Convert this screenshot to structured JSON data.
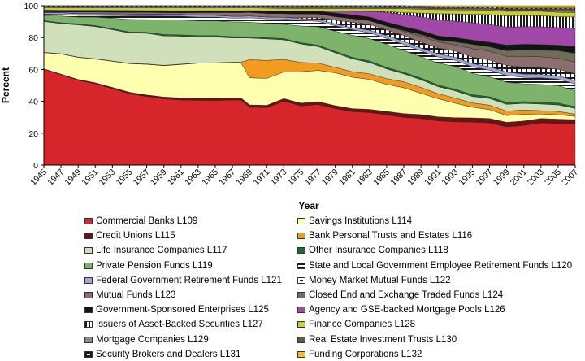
{
  "chart_data": {
    "type": "area",
    "stacked": true,
    "ylabel": "Percent",
    "xlabel": "Year",
    "ylim": [
      0,
      100
    ],
    "yticks": [
      0,
      20,
      40,
      60,
      80,
      100
    ],
    "x": [
      1945,
      1947,
      1949,
      1951,
      1953,
      1955,
      1957,
      1959,
      1961,
      1963,
      1965,
      1967,
      1968,
      1969,
      1971,
      1973,
      1975,
      1977,
      1979,
      1981,
      1983,
      1985,
      1987,
      1989,
      1991,
      1993,
      1995,
      1997,
      1999,
      2001,
      2003,
      2005,
      2007
    ],
    "xticks": [
      "1945",
      "1947",
      "1949",
      "1951",
      "1953",
      "1955",
      "1957",
      "1959",
      "1961",
      "1963",
      "1965",
      "1967",
      "1969",
      "1971",
      "1973",
      "1975",
      "1977",
      "1979",
      "1981",
      "1983",
      "1985",
      "1987",
      "1989",
      "1991",
      "1993",
      "1995",
      "1997",
      "1999",
      "2001",
      "2003",
      "2005",
      "2007"
    ],
    "series": [
      {
        "name": "Commercial Banks L109",
        "color": "#d7262b",
        "values": [
          59,
          54,
          50,
          48,
          44,
          40,
          38,
          36,
          35,
          35,
          35,
          35,
          35,
          32,
          32,
          36,
          32,
          33,
          31,
          29,
          28,
          26,
          24,
          24,
          22,
          21,
          20,
          19,
          17,
          18,
          19,
          19,
          18
        ]
      },
      {
        "name": "Credit Unions L115",
        "color": "#6b1416",
        "values": [
          0.3,
          0.4,
          0.5,
          0.6,
          0.7,
          0.8,
          0.9,
          1.0,
          1.1,
          1.1,
          1.2,
          1.2,
          1.2,
          1.3,
          1.3,
          1.4,
          1.5,
          1.6,
          1.6,
          1.6,
          1.7,
          1.8,
          1.9,
          2.0,
          2.0,
          2.0,
          2.0,
          2.0,
          2.0,
          2.0,
          2.0,
          2.0,
          2.0
        ]
      },
      {
        "name": "Savings Institutions L114",
        "color": "#ffffb0",
        "values": [
          10,
          12,
          13,
          14,
          15,
          16,
          17,
          17,
          18,
          19,
          19,
          19,
          19,
          15,
          15,
          15,
          17,
          17,
          18,
          17,
          16,
          14,
          13,
          11,
          9,
          7,
          5,
          4,
          3,
          3,
          2,
          2,
          1.5
        ]
      },
      {
        "name": "Bank Personal Trusts and Estates L116",
        "color": "#f39a20",
        "values": [
          0.2,
          0.2,
          0.2,
          0.2,
          0.2,
          0.2,
          0.2,
          0.2,
          0.2,
          0.2,
          0.2,
          0.3,
          0.3,
          10,
          10,
          7,
          5,
          4,
          3,
          3,
          3,
          3,
          3,
          3,
          2.5,
          2.5,
          2,
          2,
          2,
          2,
          1.5,
          1.5,
          1
        ]
      },
      {
        "name": "Life Insurance Companies L117",
        "color": "#cfe0bb",
        "values": [
          19,
          18,
          19,
          19,
          18,
          17,
          17,
          16,
          15,
          14,
          14,
          13,
          13,
          12,
          12,
          11,
          10,
          9,
          8,
          7,
          6,
          5,
          4,
          4,
          3.5,
          3.5,
          3,
          3,
          3,
          3,
          3,
          3,
          2.5
        ]
      },
      {
        "name": "Other Insurance Companies L118",
        "color": "#1d6b2e",
        "values": [
          0.5,
          0.5,
          0.6,
          0.6,
          0.6,
          0.6,
          0.6,
          0.7,
          0.7,
          0.7,
          0.7,
          0.7,
          0.7,
          0.7,
          0.7,
          0.7,
          0.7,
          0.8,
          0.8,
          0.8,
          0.8,
          0.8,
          0.8,
          0.8,
          0.8,
          0.8,
          0.8,
          0.8,
          0.8,
          0.8,
          0.8,
          0.8,
          0.8
        ]
      },
      {
        "name": "Private Pension Funds L119",
        "color": "#7db36a",
        "values": [
          3,
          4,
          4,
          5,
          6,
          7,
          7,
          8,
          8,
          8,
          8,
          8,
          8,
          8,
          8,
          8,
          9,
          10,
          11,
          12,
          12,
          12,
          11,
          11,
          11,
          11,
          10,
          9,
          9,
          8,
          8,
          8,
          7
        ]
      },
      {
        "name": "State and Local Government Employee Retirement Funds L120",
        "color": "#1a1a1a",
        "pattern": "stripe-h",
        "values": [
          1,
          1,
          1,
          1,
          1.5,
          2,
          2,
          2,
          2,
          2,
          2,
          2,
          2,
          2.5,
          2.5,
          3,
          3,
          3,
          3,
          3,
          3,
          3,
          3,
          3,
          3,
          3,
          3,
          3,
          3,
          3,
          3,
          3,
          3
        ]
      },
      {
        "name": "Federal Government Retirement Funds L121",
        "color": "#9fa3d8",
        "values": [
          1,
          1,
          1,
          1,
          1,
          1,
          1,
          1,
          1,
          1,
          1,
          1,
          1,
          1,
          1,
          1,
          1,
          1,
          1,
          1,
          1.5,
          1.5,
          1.5,
          1.5,
          1.5,
          1.5,
          1.5,
          1.5,
          1.5,
          1.5,
          1.5,
          1.5,
          1.5
        ]
      },
      {
        "name": "Money Market Mutual Funds L122",
        "color": "#ffffff",
        "pattern": "box-white",
        "values": [
          0,
          0,
          0,
          0,
          0,
          0,
          0,
          0,
          0,
          0,
          0,
          0,
          0,
          0,
          0,
          0,
          0.5,
          1,
          2,
          3,
          3,
          3,
          3,
          3,
          3,
          3,
          3,
          3,
          3,
          3,
          3,
          3,
          3
        ]
      },
      {
        "name": "Mutual Funds L123",
        "color": "#8d6e6e",
        "values": [
          0.5,
          0.5,
          1,
          1,
          1,
          1,
          1,
          1,
          1,
          1.5,
          1.5,
          2,
          2,
          2,
          2,
          2,
          2,
          2,
          2,
          2,
          2,
          2,
          2,
          3,
          3,
          3,
          4,
          4,
          4,
          5,
          5,
          5,
          5
        ]
      },
      {
        "name": "Closed End and Exchange Traded Funds L124",
        "color": "#706c5a",
        "values": [
          0,
          0,
          0,
          0,
          0,
          0,
          0,
          0,
          0,
          0,
          0,
          0,
          0,
          0,
          0,
          0,
          0,
          0,
          0,
          0,
          0,
          0,
          0.5,
          1,
          1,
          1.5,
          2,
          2,
          2.5,
          3,
          3,
          3.5,
          4
        ]
      },
      {
        "name": "Government-Sponsored Enterprises L125",
        "color": "#141414",
        "values": [
          1,
          1,
          1,
          1,
          1,
          1,
          1,
          1,
          1,
          1,
          1,
          1,
          1,
          1,
          1.5,
          1.5,
          1.5,
          1.5,
          2,
          2,
          2,
          2,
          2,
          2,
          2,
          2,
          2,
          2,
          2.5,
          2.5,
          2.5,
          2.5,
          3
        ]
      },
      {
        "name": "Agency and GSE-backed Mortgage Pools L126",
        "color": "#a047a8",
        "values": [
          0,
          0,
          0,
          0,
          0,
          0,
          0,
          0,
          0,
          0,
          0,
          0,
          0,
          0,
          0,
          0,
          0,
          0,
          1,
          2,
          3,
          5,
          6,
          7,
          8,
          8,
          8,
          8,
          8,
          8,
          8,
          8,
          8
        ]
      },
      {
        "name": "Issuers of Asset-Backed Securities L127",
        "color": "#ffffff",
        "pattern": "stripe-v",
        "values": [
          0,
          0,
          0,
          0,
          0,
          0,
          0,
          0,
          0,
          0,
          0,
          0,
          0,
          0,
          0,
          0,
          0,
          0,
          0,
          0,
          0,
          0.5,
          1,
          2,
          3,
          3.5,
          4,
          4.5,
          5,
          5,
          5,
          5,
          5
        ]
      },
      {
        "name": "Finance Companies L128",
        "color": "#c6ce3a",
        "values": [
          1.5,
          1.5,
          1.5,
          1.5,
          1.5,
          1.5,
          1.5,
          1.5,
          1.5,
          1.5,
          1.5,
          1.5,
          1.5,
          1.5,
          1.5,
          1.5,
          1.5,
          1.5,
          1.5,
          1.5,
          1.5,
          1.5,
          2,
          2,
          2,
          2,
          2,
          2,
          2,
          2,
          2,
          2,
          2
        ]
      },
      {
        "name": "Mortgage Companies L129",
        "color": "#8e8a7a",
        "values": [
          0.5,
          0.5,
          0.5,
          0.5,
          0.5,
          0.5,
          0.5,
          0.5,
          0.5,
          0.5,
          0.5,
          0.5,
          0.5,
          0.5,
          0.5,
          0.5,
          0.5,
          0.5,
          0.5,
          0.5,
          0.5,
          0.5,
          0.5,
          0.5,
          0.5,
          0.5,
          0.5,
          0.5,
          0.5,
          0.5,
          0.5,
          0.5,
          0.5
        ]
      },
      {
        "name": "Real Estate Investment Trusts L130",
        "color": "#5e5a48",
        "values": [
          0.2,
          0.2,
          0.2,
          0.2,
          0.2,
          0.2,
          0.2,
          0.2,
          0.2,
          0.2,
          0.2,
          0.2,
          0.2,
          0.2,
          0.3,
          0.5,
          0.5,
          0.5,
          0.5,
          0.5,
          0.5,
          0.5,
          0.5,
          0.5,
          0.5,
          0.5,
          0.5,
          0.5,
          0.5,
          0.5,
          0.5,
          1,
          1
        ]
      },
      {
        "name": "Security Brokers and Dealers L131",
        "color": "#ffffff",
        "pattern": "box-black",
        "values": [
          0.5,
          0.5,
          0.5,
          0.5,
          0.5,
          0.5,
          0.5,
          0.5,
          0.5,
          0.5,
          0.5,
          0.5,
          0.5,
          0.5,
          0.5,
          0.5,
          0.5,
          0.5,
          0.5,
          0.5,
          0.5,
          0.5,
          0.5,
          0.5,
          0.5,
          0.5,
          0.5,
          0.5,
          0.5,
          0.5,
          0.5,
          0.5,
          0.5
        ]
      },
      {
        "name": "Funding Corporations L132",
        "color": "#f5bd1f",
        "values": [
          0,
          0,
          0,
          0,
          0,
          0,
          0,
          0,
          0,
          0,
          0,
          0,
          0,
          0,
          0,
          0,
          0,
          0,
          0,
          0,
          0,
          0,
          0,
          0.3,
          0.5,
          0.5,
          0.5,
          0.5,
          1,
          1,
          1,
          1,
          1
        ]
      }
    ],
    "legend_placement": "below",
    "legend_columns": 2,
    "legend_order": [
      "Commercial Banks L109",
      "Savings Institutions L114",
      "Credit Unions L115",
      "Bank Personal Trusts and Estates L116",
      "Life Insurance Companies L117",
      "Other Insurance Companies L118",
      "Private Pension Funds L119",
      "State and Local Government Employee Retirement Funds L120",
      "Federal Government Retirement Funds L121",
      "Money Market Mutual Funds L122",
      "Mutual Funds L123",
      "Closed End and Exchange Traded Funds L124",
      "Government-Sponsored Enterprises L125",
      "Agency and GSE-backed Mortgage Pools L126",
      "Issuers of Asset-Backed Securities L127",
      "Finance Companies L128",
      "Mortgage Companies L129",
      "Real Estate Investment Trusts L130",
      "Security Brokers and Dealers L131",
      "Funding Corporations L132"
    ],
    "grid": false
  }
}
